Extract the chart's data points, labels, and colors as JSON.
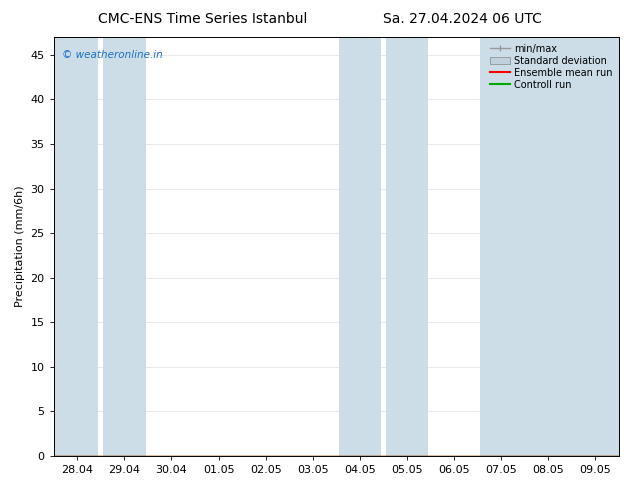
{
  "title_left": "CMC-ENS Time Series Istanbul",
  "title_right": "Sa. 27.04.2024 06 UTC",
  "ylabel": "Precipitation (mm/6h)",
  "watermark": "© weatheronline.in",
  "watermark_color": "#1a6ec7",
  "ylim": [
    0,
    47
  ],
  "yticks": [
    0,
    5,
    10,
    15,
    20,
    25,
    30,
    35,
    40,
    45
  ],
  "x_labels": [
    "28.04",
    "29.04",
    "30.04",
    "01.05",
    "02.05",
    "03.05",
    "04.05",
    "05.05",
    "06.05",
    "07.05",
    "08.05",
    "09.05"
  ],
  "band_color": "#ccdde8",
  "background_color": "#ffffff",
  "legend_labels": [
    "min/max",
    "Standard deviation",
    "Ensemble mean run",
    "Controll run"
  ],
  "legend_colors_line": [
    "#999999",
    "#c0d0dd",
    "#ff0000",
    "#00aa00"
  ],
  "title_fontsize": 10,
  "axis_fontsize": 8,
  "tick_fontsize": 8
}
